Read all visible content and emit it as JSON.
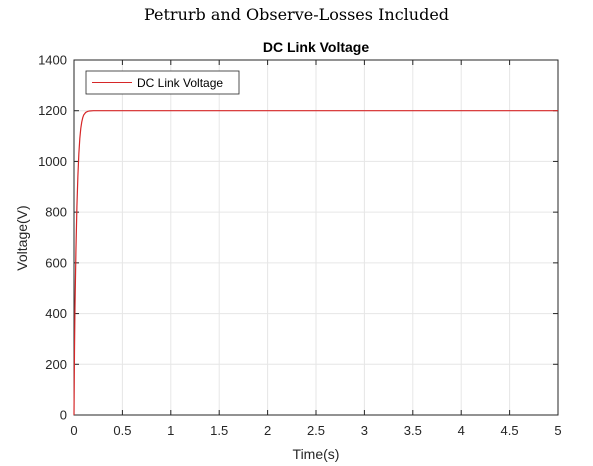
{
  "figure_title": "Petrurb and Observe-Losses Included",
  "chart_data": {
    "type": "line",
    "title": "DC Link Voltage",
    "xlabel": "Time(s)",
    "ylabel": "Voltage(V)",
    "xlim": [
      0,
      5
    ],
    "ylim": [
      0,
      1400
    ],
    "x_ticks": [
      0,
      0.5,
      1,
      1.5,
      2,
      2.5,
      3,
      3.5,
      4,
      4.5,
      5
    ],
    "y_ticks": [
      0,
      200,
      400,
      600,
      800,
      1000,
      1200,
      1400
    ],
    "grid": true,
    "legend_position": "top-left",
    "series": [
      {
        "name": "DC Link Voltage",
        "color": "#d62728",
        "x": [
          0,
          0.005,
          0.01,
          0.02,
          0.03,
          0.04,
          0.05,
          0.06,
          0.07,
          0.08,
          0.09,
          0.1,
          0.12,
          0.14,
          0.16,
          0.2,
          0.3,
          0.5,
          1,
          2,
          3,
          4,
          5
        ],
        "y": [
          0,
          250,
          420,
          650,
          820,
          940,
          1030,
          1090,
          1130,
          1155,
          1172,
          1183,
          1193,
          1197,
          1199,
          1200,
          1200,
          1200,
          1200,
          1200,
          1200,
          1200,
          1200
        ]
      }
    ]
  }
}
